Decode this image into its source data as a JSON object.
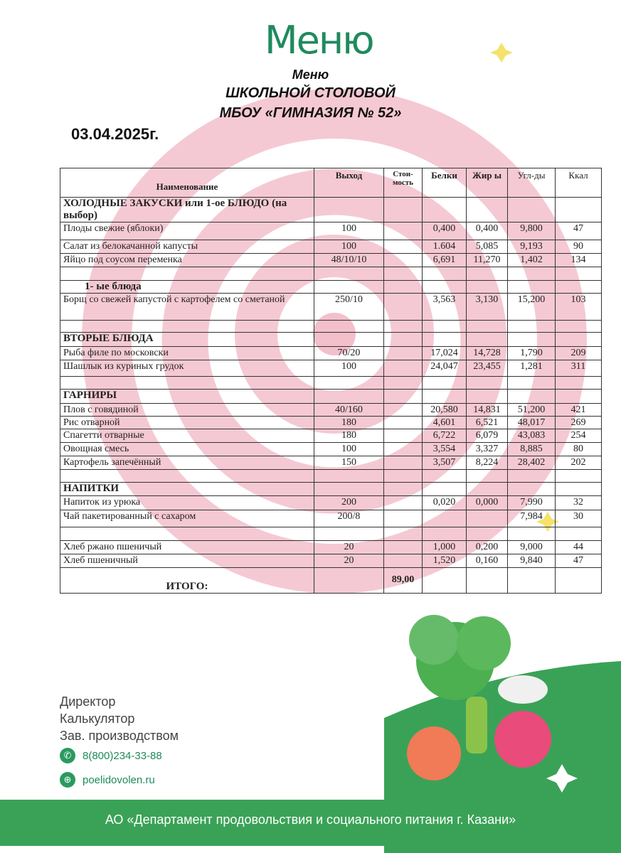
{
  "header": {
    "logo": "Меню",
    "subtitle": "Меню",
    "title": "ШКОЛЬНОЙ СТОЛОВОЙ",
    "school": "МБОУ «ГИМНАЗИЯ № 52»",
    "date": "03.04.2025г."
  },
  "table": {
    "columns": [
      "Наименование",
      "Выход",
      "Стои-мость",
      "Белки",
      "Жир ы",
      "Угл-ды",
      "Ккал"
    ],
    "rows": [
      {
        "type": "section",
        "name": "ХОЛОДНЫЕ ЗАКУСКИ или 1-ое БЛЮДО (на выбор)"
      },
      {
        "name": "Плоды свежие  (яблоки)",
        "out": "100",
        "cost": "",
        "p": "0,400",
        "f": "0,400",
        "c": "9,800",
        "k": "47"
      },
      {
        "name": "Салат из белокачанной капусты",
        "out": "100",
        "cost": "",
        "p": "1.604",
        "f": "5,085",
        "c": "9,193",
        "k": "90"
      },
      {
        "name": "Яйцо под соусом переменка",
        "out": "48/10/10",
        "cost": "",
        "p": "6,691",
        "f": "11,270",
        "c": "1,402",
        "k": "134"
      },
      {
        "type": "empty"
      },
      {
        "type": "section",
        "name": "1-   ые блюда",
        "indent": true
      },
      {
        "name": "Борщ со свежей капустой с картофелем со сметаной",
        "out": "250/10",
        "cost": "",
        "p": "3,563",
        "f": "3,130",
        "c": "15,200",
        "k": "103"
      },
      {
        "type": "empty"
      },
      {
        "type": "section",
        "name": "ВТОРЫЕ БЛЮДА"
      },
      {
        "name": "Рыба филе по московски",
        "out": "70/20",
        "cost": "",
        "p": "17,024",
        "f": "14,728",
        "c": "1,790",
        "k": "209"
      },
      {
        "name": "Шашлык из куриных грудок",
        "out": "100",
        "cost": "",
        "p": "24,047",
        "f": "23,455",
        "c": "1,281",
        "k": "311"
      },
      {
        "type": "empty"
      },
      {
        "type": "section",
        "name": "ГАРНИРЫ"
      },
      {
        "name": "Плов с говядиной",
        "out": "40/160",
        "cost": "",
        "p": "20,580",
        "f": "14,831",
        "c": "51,200",
        "k": "421"
      },
      {
        "name": "Рис отварной",
        "out": "180",
        "cost": "",
        "p": "4,601",
        "f": "6,521",
        "c": "48,017",
        "k": "269"
      },
      {
        "name": "Спагетти отварные",
        "out": "180",
        "cost": "",
        "p": "6,722",
        "f": "6,079",
        "c": "43,083",
        "k": "254"
      },
      {
        "name": "Овощная смесь",
        "out": "100",
        "cost": "",
        "p": "3,554",
        "f": "3,327",
        "c": "8,885",
        "k": "80"
      },
      {
        "name": "Картофель запечённый",
        "out": "150",
        "cost": "",
        "p": "3,507",
        "f": "8,224",
        "c": "28,402",
        "k": "202"
      },
      {
        "type": "empty"
      },
      {
        "type": "section",
        "name": "НАПИТКИ"
      },
      {
        "name": "Напиток из урюка",
        "out": "200",
        "cost": "",
        "p": "0,020",
        "f": "0,000",
        "c": "7,990",
        "k": "32"
      },
      {
        "name": "Чай пакетированный с сахаром",
        "out": "200/8",
        "cost": "",
        "p": "",
        "f": "",
        "c": "7,984",
        "k": "30"
      },
      {
        "type": "empty"
      },
      {
        "name": "Хлеб ржано пшеничый",
        "out": "20",
        "cost": "",
        "p": "1,000",
        "f": "0,200",
        "c": "9,000",
        "k": "44"
      },
      {
        "name": "Хлеб пшеничный",
        "out": "20",
        "cost": "",
        "p": "1,520",
        "f": "0,160",
        "c": "9,840",
        "k": "47"
      }
    ],
    "total": {
      "label": "ИТОГО:",
      "cost": "89,00"
    }
  },
  "footer": {
    "roles": [
      "Директор",
      "Калькулятор",
      "Зав. производством"
    ],
    "phone": "8(800)234-33-88",
    "phone_icon": "phone-icon",
    "site": "poelidovolen.ru",
    "site_icon": "globe-icon",
    "org": "АО «Департамент продовольствия и социального питания г. Казани»"
  },
  "colors": {
    "brand_green": "#3aa257",
    "spiral_pink": "#f2b8c6"
  }
}
